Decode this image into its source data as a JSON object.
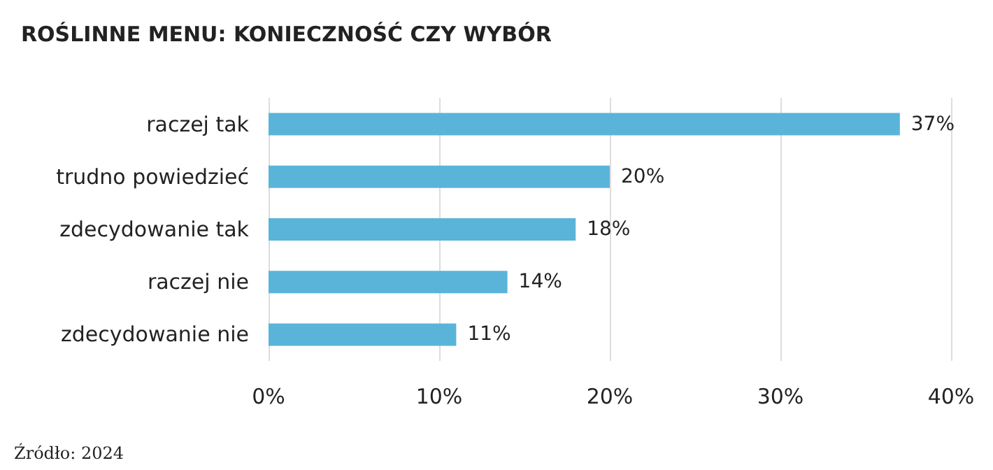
{
  "chart_data": {
    "type": "bar",
    "orientation": "horizontal",
    "title": "ROŚLINNE MENU: KONIECZNOŚĆ CZY WYBÓR",
    "categories": [
      "raczej tak",
      "trudno powiedzieć",
      "zdecydowanie tak",
      "raczej nie",
      "zdecydowanie nie"
    ],
    "values": [
      37,
      20,
      18,
      14,
      11
    ],
    "color": "#5ab4d9",
    "value_labels": [
      "37%",
      "20%",
      "18%",
      "14%",
      "11%"
    ],
    "xlim": [
      0,
      40
    ],
    "xticks": [
      {
        "value": 0,
        "label": "0%"
      },
      {
        "value": 10,
        "label": "10%"
      },
      {
        "value": 20,
        "label": "20%"
      },
      {
        "value": 30,
        "label": "30%"
      },
      {
        "value": 40,
        "label": "40%"
      }
    ],
    "grid": "x",
    "annotations": [
      "Źródło: 2024"
    ]
  }
}
